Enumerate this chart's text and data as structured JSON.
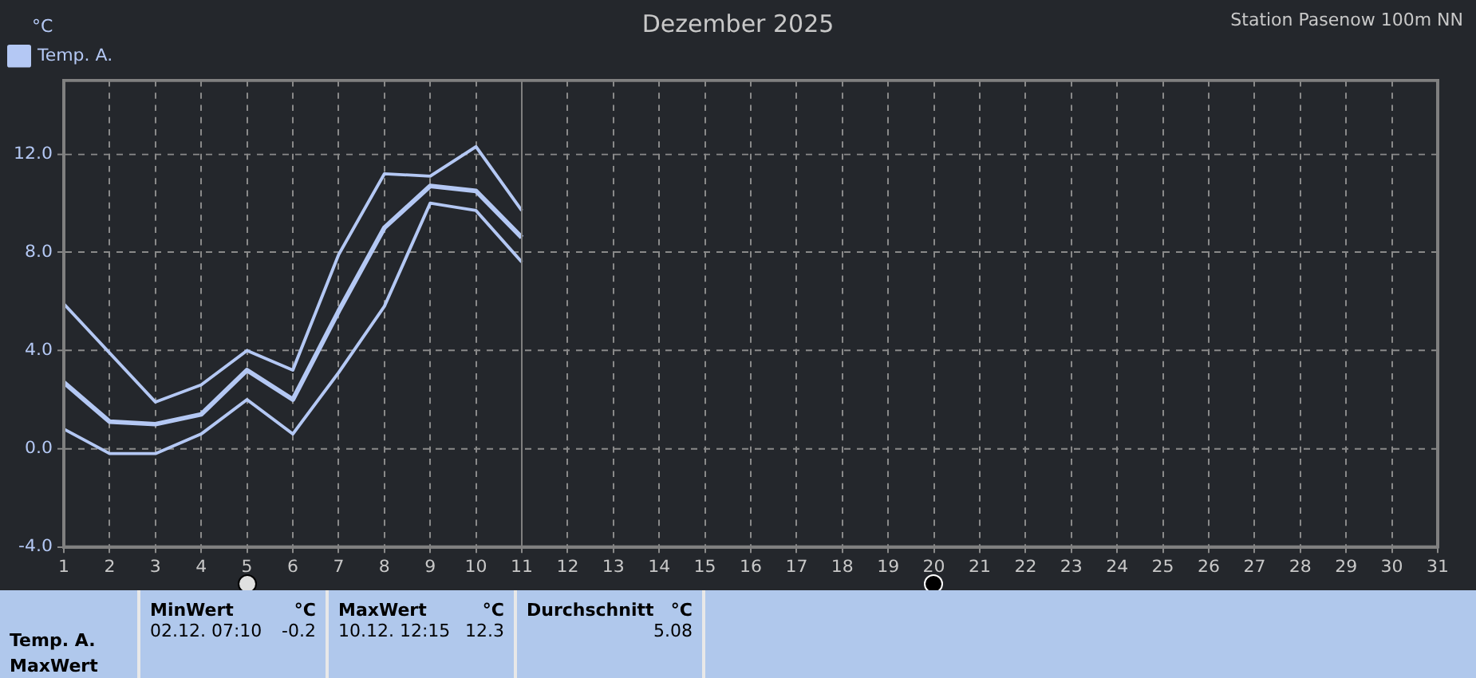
{
  "chart_data": {
    "type": "line",
    "title": "Dezember 2025",
    "subtitle": "Station Pasenow 100m NN",
    "ylabel": "°C",
    "x": [
      1,
      2,
      3,
      4,
      5,
      6,
      7,
      8,
      9,
      10,
      11
    ],
    "series": [
      {
        "color": "#b4c8f4",
        "values": [
          5.9,
          3.9,
          1.9,
          2.6,
          4.0,
          3.2,
          7.9,
          11.2,
          11.1,
          12.3,
          9.7
        ]
      },
      {
        "name": "Temp. A.",
        "color": "#b4c8f4",
        "values": [
          2.7,
          1.1,
          1.0,
          1.4,
          3.2,
          2.0,
          5.6,
          9.0,
          10.7,
          10.5,
          8.6
        ]
      },
      {
        "color": "#b4c8f4",
        "values": [
          0.8,
          -0.2,
          -0.2,
          0.6,
          2.0,
          0.6,
          3.1,
          5.8,
          10.0,
          9.7,
          7.6
        ]
      }
    ],
    "xlim": [
      1,
      31
    ],
    "xticks": [
      1,
      2,
      3,
      4,
      5,
      6,
      7,
      8,
      9,
      10,
      11,
      12,
      13,
      14,
      15,
      16,
      17,
      18,
      19,
      20,
      21,
      22,
      23,
      24,
      25,
      26,
      27,
      28,
      29,
      30,
      31
    ],
    "ylim": [
      -4,
      15
    ],
    "yticks": [
      {
        "value": -4,
        "label": "-4.0"
      },
      {
        "value": 0,
        "label": "0.0"
      },
      {
        "value": 4,
        "label": "4.0"
      },
      {
        "value": 8,
        "label": "8.0"
      },
      {
        "value": 12,
        "label": "12.0"
      }
    ],
    "grid": true,
    "legend": "top left",
    "ref_lines": [
      {
        "axis": "x",
        "value": 11,
        "color": "#808080"
      }
    ],
    "annotations": [
      "Temp. A.",
      "MaxWert",
      "MinWert",
      "°C",
      "02.12.  07:10",
      "-0.2",
      "MaxWert",
      "°C",
      "10.12.  12:15",
      "12.3",
      "Durchschnitt",
      "°C",
      "5.08"
    ]
  }
}
